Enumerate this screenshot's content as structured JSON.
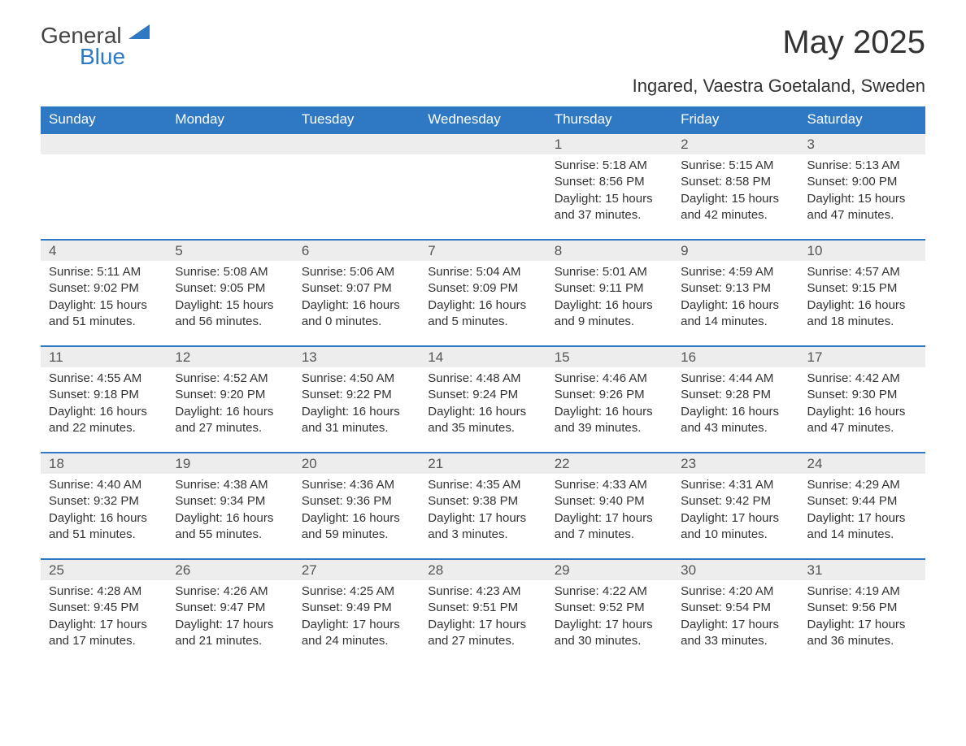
{
  "logo": {
    "general": "General",
    "blue": "Blue",
    "triangle_color": "#2f78c4"
  },
  "title": "May 2025",
  "location": "Ingared, Vaestra Goetaland, Sweden",
  "colors": {
    "header_bg": "#2f78c4",
    "header_text": "#ffffff",
    "daynum_bg": "#ededed",
    "row_divider": "#2f78c4",
    "body_text": "#333333"
  },
  "font": {
    "family": "Arial",
    "title_size_pt": 30,
    "location_size_pt": 16,
    "th_size_pt": 13,
    "cell_size_pt": 11
  },
  "weekdays": [
    "Sunday",
    "Monday",
    "Tuesday",
    "Wednesday",
    "Thursday",
    "Friday",
    "Saturday"
  ],
  "weeks": [
    [
      null,
      null,
      null,
      null,
      {
        "d": "1",
        "sr": "5:18 AM",
        "ss": "8:56 PM",
        "dl": "15 hours and 37 minutes."
      },
      {
        "d": "2",
        "sr": "5:15 AM",
        "ss": "8:58 PM",
        "dl": "15 hours and 42 minutes."
      },
      {
        "d": "3",
        "sr": "5:13 AM",
        "ss": "9:00 PM",
        "dl": "15 hours and 47 minutes."
      }
    ],
    [
      {
        "d": "4",
        "sr": "5:11 AM",
        "ss": "9:02 PM",
        "dl": "15 hours and 51 minutes."
      },
      {
        "d": "5",
        "sr": "5:08 AM",
        "ss": "9:05 PM",
        "dl": "15 hours and 56 minutes."
      },
      {
        "d": "6",
        "sr": "5:06 AM",
        "ss": "9:07 PM",
        "dl": "16 hours and 0 minutes."
      },
      {
        "d": "7",
        "sr": "5:04 AM",
        "ss": "9:09 PM",
        "dl": "16 hours and 5 minutes."
      },
      {
        "d": "8",
        "sr": "5:01 AM",
        "ss": "9:11 PM",
        "dl": "16 hours and 9 minutes."
      },
      {
        "d": "9",
        "sr": "4:59 AM",
        "ss": "9:13 PM",
        "dl": "16 hours and 14 minutes."
      },
      {
        "d": "10",
        "sr": "4:57 AM",
        "ss": "9:15 PM",
        "dl": "16 hours and 18 minutes."
      }
    ],
    [
      {
        "d": "11",
        "sr": "4:55 AM",
        "ss": "9:18 PM",
        "dl": "16 hours and 22 minutes."
      },
      {
        "d": "12",
        "sr": "4:52 AM",
        "ss": "9:20 PM",
        "dl": "16 hours and 27 minutes."
      },
      {
        "d": "13",
        "sr": "4:50 AM",
        "ss": "9:22 PM",
        "dl": "16 hours and 31 minutes."
      },
      {
        "d": "14",
        "sr": "4:48 AM",
        "ss": "9:24 PM",
        "dl": "16 hours and 35 minutes."
      },
      {
        "d": "15",
        "sr": "4:46 AM",
        "ss": "9:26 PM",
        "dl": "16 hours and 39 minutes."
      },
      {
        "d": "16",
        "sr": "4:44 AM",
        "ss": "9:28 PM",
        "dl": "16 hours and 43 minutes."
      },
      {
        "d": "17",
        "sr": "4:42 AM",
        "ss": "9:30 PM",
        "dl": "16 hours and 47 minutes."
      }
    ],
    [
      {
        "d": "18",
        "sr": "4:40 AM",
        "ss": "9:32 PM",
        "dl": "16 hours and 51 minutes."
      },
      {
        "d": "19",
        "sr": "4:38 AM",
        "ss": "9:34 PM",
        "dl": "16 hours and 55 minutes."
      },
      {
        "d": "20",
        "sr": "4:36 AM",
        "ss": "9:36 PM",
        "dl": "16 hours and 59 minutes."
      },
      {
        "d": "21",
        "sr": "4:35 AM",
        "ss": "9:38 PM",
        "dl": "17 hours and 3 minutes."
      },
      {
        "d": "22",
        "sr": "4:33 AM",
        "ss": "9:40 PM",
        "dl": "17 hours and 7 minutes."
      },
      {
        "d": "23",
        "sr": "4:31 AM",
        "ss": "9:42 PM",
        "dl": "17 hours and 10 minutes."
      },
      {
        "d": "24",
        "sr": "4:29 AM",
        "ss": "9:44 PM",
        "dl": "17 hours and 14 minutes."
      }
    ],
    [
      {
        "d": "25",
        "sr": "4:28 AM",
        "ss": "9:45 PM",
        "dl": "17 hours and 17 minutes."
      },
      {
        "d": "26",
        "sr": "4:26 AM",
        "ss": "9:47 PM",
        "dl": "17 hours and 21 minutes."
      },
      {
        "d": "27",
        "sr": "4:25 AM",
        "ss": "9:49 PM",
        "dl": "17 hours and 24 minutes."
      },
      {
        "d": "28",
        "sr": "4:23 AM",
        "ss": "9:51 PM",
        "dl": "17 hours and 27 minutes."
      },
      {
        "d": "29",
        "sr": "4:22 AM",
        "ss": "9:52 PM",
        "dl": "17 hours and 30 minutes."
      },
      {
        "d": "30",
        "sr": "4:20 AM",
        "ss": "9:54 PM",
        "dl": "17 hours and 33 minutes."
      },
      {
        "d": "31",
        "sr": "4:19 AM",
        "ss": "9:56 PM",
        "dl": "17 hours and 36 minutes."
      }
    ]
  ],
  "labels": {
    "sunrise": "Sunrise:",
    "sunset": "Sunset:",
    "daylight": "Daylight:"
  }
}
